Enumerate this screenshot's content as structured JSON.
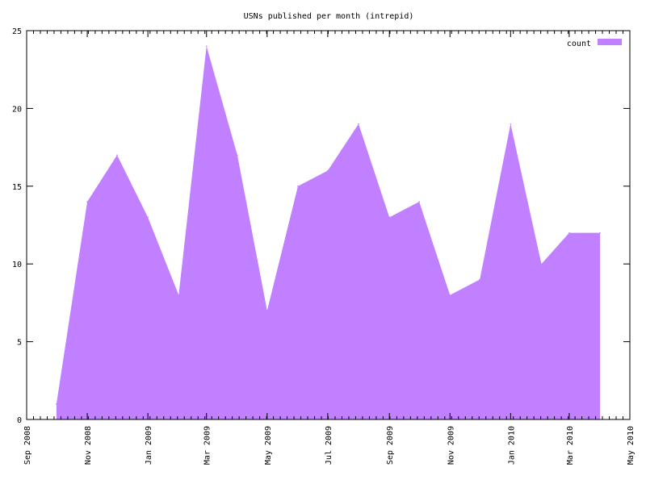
{
  "chart_data": {
    "type": "area",
    "title": "USNs published per month (intrepid)",
    "xlabel": "",
    "ylabel": "",
    "xlim": [
      "2008-09-01",
      "2010-05-01"
    ],
    "ylim": [
      0,
      25
    ],
    "y_ticks": [
      0,
      5,
      10,
      15,
      20,
      25
    ],
    "x_ticks": [
      {
        "date": "2008-09-01",
        "label": "Sep 2008"
      },
      {
        "date": "2008-11-01",
        "label": "Nov 2008"
      },
      {
        "date": "2009-01-01",
        "label": "Jan 2009"
      },
      {
        "date": "2009-03-01",
        "label": "Mar 2009"
      },
      {
        "date": "2009-05-01",
        "label": "May 2009"
      },
      {
        "date": "2009-07-01",
        "label": "Jul 2009"
      },
      {
        "date": "2009-09-01",
        "label": "Sep 2009"
      },
      {
        "date": "2009-11-01",
        "label": "Nov 2009"
      },
      {
        "date": "2010-01-01",
        "label": "Jan 2010"
      },
      {
        "date": "2010-03-01",
        "label": "Mar 2010"
      },
      {
        "date": "2010-05-01",
        "label": "May 2010"
      }
    ],
    "grid": false,
    "legend": "top-right",
    "color": "#c080ff",
    "series": [
      {
        "name": "count",
        "x": [
          "2008-10-01",
          "2008-11-01",
          "2008-12-01",
          "2009-01-01",
          "2009-02-01",
          "2009-03-01",
          "2009-04-01",
          "2009-05-01",
          "2009-06-01",
          "2009-07-01",
          "2009-08-01",
          "2009-09-01",
          "2009-10-01",
          "2009-11-01",
          "2009-12-01",
          "2010-01-01",
          "2010-02-01",
          "2010-03-01",
          "2010-04-01"
        ],
        "values": [
          1,
          14,
          17,
          13,
          8,
          24,
          17,
          7,
          15,
          16,
          19,
          13,
          14,
          8,
          9,
          19,
          10,
          12,
          12
        ]
      }
    ]
  }
}
